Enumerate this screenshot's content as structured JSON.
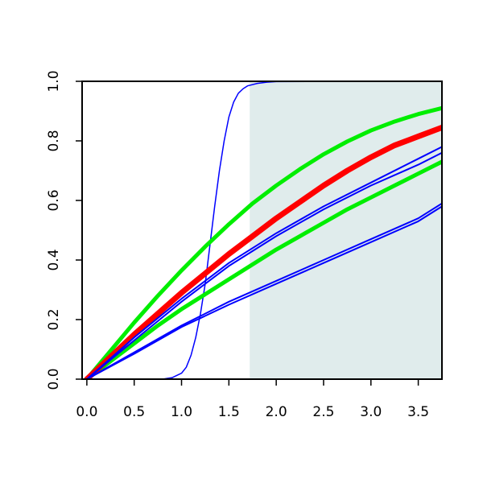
{
  "chart_data": {
    "type": "line",
    "title": "",
    "xlabel": "",
    "ylabel": "",
    "xlim": [
      -0.05,
      3.75
    ],
    "ylim": [
      0,
      1
    ],
    "x_ticks": [
      "0.0",
      "0.5",
      "1.0",
      "1.5",
      "2.0",
      "2.5",
      "3.0",
      "3.5"
    ],
    "y_ticks": [
      "0.0",
      "0.2",
      "0.4",
      "0.6",
      "0.8",
      "1.0"
    ],
    "grid": false,
    "shaded_region": {
      "x_start": 1.72,
      "x_end": 3.75,
      "color": "#e0ecec"
    },
    "series": [
      {
        "color": "#0000ff",
        "width": 1.5,
        "x": [
          0.0,
          0.8,
          0.9,
          1.0,
          1.05,
          1.1,
          1.15,
          1.2,
          1.25,
          1.3,
          1.35,
          1.4,
          1.45,
          1.5,
          1.55,
          1.6,
          1.65,
          1.7,
          1.8,
          1.9,
          2.0,
          3.75
        ],
        "values": [
          0.0,
          0.0,
          0.005,
          0.02,
          0.04,
          0.08,
          0.14,
          0.22,
          0.32,
          0.45,
          0.58,
          0.7,
          0.8,
          0.88,
          0.93,
          0.96,
          0.975,
          0.985,
          0.993,
          0.997,
          0.999,
          1.0
        ]
      },
      {
        "color": "#00ee00",
        "width": 5,
        "x": [
          0.0,
          0.25,
          0.5,
          0.75,
          1.0,
          1.25,
          1.5,
          1.75,
          2.0,
          2.25,
          2.5,
          2.75,
          3.0,
          3.25,
          3.5,
          3.75
        ],
        "values": [
          0.0,
          0.095,
          0.19,
          0.28,
          0.365,
          0.445,
          0.52,
          0.59,
          0.65,
          0.705,
          0.755,
          0.798,
          0.835,
          0.865,
          0.89,
          0.91
        ]
      },
      {
        "color": "#00ee00",
        "width": 5,
        "x": [
          0.0,
          0.25,
          0.5,
          0.75,
          1.0,
          1.25,
          1.5,
          1.75,
          2.0,
          2.25,
          2.5,
          2.75,
          3.0,
          3.25,
          3.5,
          3.75
        ],
        "values": [
          0.0,
          0.06,
          0.12,
          0.18,
          0.235,
          0.285,
          0.335,
          0.385,
          0.435,
          0.48,
          0.525,
          0.57,
          0.61,
          0.65,
          0.69,
          0.73
        ]
      },
      {
        "color": "#ff0000",
        "width": 7,
        "x": [
          0.0,
          0.25,
          0.5,
          0.75,
          1.0,
          1.25,
          1.5,
          1.75,
          2.0,
          2.25,
          2.5,
          2.75,
          3.0,
          3.25,
          3.5,
          3.75
        ],
        "values": [
          0.0,
          0.075,
          0.15,
          0.22,
          0.29,
          0.355,
          0.42,
          0.48,
          0.54,
          0.595,
          0.65,
          0.7,
          0.745,
          0.785,
          0.815,
          0.845
        ]
      },
      {
        "color": "#0000ff",
        "width": 2,
        "x": [
          0.0,
          0.5,
          1.0,
          1.5,
          2.0,
          2.5,
          3.0,
          3.5,
          3.75
        ],
        "values": [
          0.0,
          0.14,
          0.27,
          0.39,
          0.49,
          0.58,
          0.66,
          0.74,
          0.78
        ]
      },
      {
        "color": "#0000ff",
        "width": 2,
        "x": [
          0.0,
          0.5,
          1.0,
          1.5,
          2.0,
          2.5,
          3.0,
          3.5,
          3.75
        ],
        "values": [
          0.0,
          0.13,
          0.26,
          0.38,
          0.48,
          0.57,
          0.65,
          0.72,
          0.76
        ]
      },
      {
        "color": "#0000ff",
        "width": 2,
        "x": [
          0.0,
          0.5,
          1.0,
          1.5,
          2.0,
          2.5,
          3.0,
          3.5,
          3.75
        ],
        "values": [
          0.0,
          0.09,
          0.18,
          0.26,
          0.33,
          0.4,
          0.47,
          0.54,
          0.59
        ]
      },
      {
        "color": "#0000ff",
        "width": 2,
        "x": [
          0.0,
          0.5,
          1.0,
          1.5,
          2.0,
          2.5,
          3.0,
          3.5,
          3.75
        ],
        "values": [
          0.0,
          0.085,
          0.175,
          0.25,
          0.32,
          0.39,
          0.46,
          0.53,
          0.58
        ]
      }
    ]
  }
}
